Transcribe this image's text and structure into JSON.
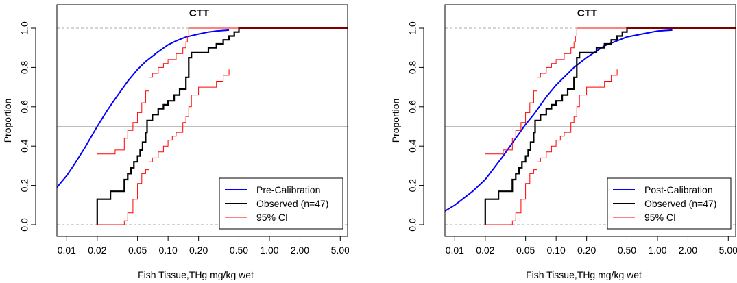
{
  "chart_data": [
    {
      "type": "line",
      "title": "CTT",
      "xlabel": "Fish Tissue,THg mg/kg wet",
      "ylabel": "Proportion",
      "x_scale": "log",
      "xlim": [
        0.008,
        6.0
      ],
      "ylim": [
        0,
        1
      ],
      "x_ticks": [
        0.01,
        0.02,
        0.05,
        0.1,
        0.2,
        0.5,
        1.0,
        2.0,
        5.0
      ],
      "x_tick_labels": [
        "0.01",
        "0.02",
        "0.05",
        "0.10",
        "0.20",
        "0.50",
        "1.00",
        "2.00",
        "5.00"
      ],
      "y_ticks": [
        0.0,
        0.2,
        0.4,
        0.6,
        0.8,
        1.0
      ],
      "y_tick_labels": [
        "0.0",
        "0.2",
        "0.4",
        "0.6",
        "0.8",
        "1.0"
      ],
      "reference_lines": [
        0.0,
        0.5,
        1.0
      ],
      "grid": false,
      "legend_position": "bottom-right",
      "legend": [
        {
          "label": "Pre-Calibration",
          "color": "#0000ff",
          "width": 2
        },
        {
          "label": "Observed (n=47)",
          "color": "#000000",
          "width": 2
        },
        {
          "label": "95% CI",
          "color": "#ff0000",
          "width": 1
        }
      ],
      "series": [
        {
          "name": "Pre-Calibration",
          "color": "#0000ff",
          "kind": "curve",
          "x": [
            0.008,
            0.01,
            0.012,
            0.015,
            0.02,
            0.025,
            0.03,
            0.04,
            0.05,
            0.06,
            0.08,
            0.1,
            0.12,
            0.15,
            0.2,
            0.25,
            0.3,
            0.4
          ],
          "y": [
            0.19,
            0.25,
            0.31,
            0.39,
            0.5,
            0.58,
            0.64,
            0.73,
            0.79,
            0.83,
            0.88,
            0.915,
            0.935,
            0.955,
            0.97,
            0.98,
            0.985,
            0.99
          ]
        },
        {
          "name": "Observed (n=47)",
          "color": "#000000",
          "kind": "step",
          "x": [
            0.02,
            0.027,
            0.037,
            0.04,
            0.043,
            0.046,
            0.05,
            0.053,
            0.056,
            0.06,
            0.062,
            0.07,
            0.08,
            0.09,
            0.1,
            0.115,
            0.13,
            0.15,
            0.16,
            0.17,
            0.25,
            0.3,
            0.35,
            0.4,
            0.45,
            0.5,
            0.6
          ],
          "y": [
            0.13,
            0.17,
            0.23,
            0.26,
            0.29,
            0.32,
            0.35,
            0.38,
            0.42,
            0.47,
            0.53,
            0.56,
            0.59,
            0.61,
            0.63,
            0.66,
            0.69,
            0.75,
            0.85,
            0.875,
            0.9,
            0.92,
            0.94,
            0.96,
            0.98,
            1.0,
            1.0
          ]
        },
        {
          "name": "95% CI",
          "color": "#ff0000",
          "kind": "step",
          "x": [
            0.02,
            0.03,
            0.037,
            0.04,
            0.045,
            0.05,
            0.055,
            0.06,
            0.065,
            0.07,
            0.08,
            0.09,
            0.1,
            0.12,
            0.14,
            0.15,
            0.155,
            0.16,
            0.3,
            0.5
          ],
          "y": [
            0.36,
            0.38,
            0.44,
            0.48,
            0.52,
            0.57,
            0.62,
            0.68,
            0.75,
            0.77,
            0.8,
            0.82,
            0.84,
            0.87,
            0.9,
            0.93,
            0.96,
            1.0,
            1.0,
            1.0
          ]
        },
        {
          "name": "95% CI",
          "color": "#ff0000",
          "kind": "step",
          "x": [
            0.02,
            0.037,
            0.04,
            0.045,
            0.05,
            0.055,
            0.06,
            0.065,
            0.07,
            0.08,
            0.09,
            0.1,
            0.11,
            0.12,
            0.14,
            0.15,
            0.16,
            0.17,
            0.2,
            0.3,
            0.35,
            0.4
          ],
          "y": [
            0.0,
            0.02,
            0.06,
            0.13,
            0.21,
            0.26,
            0.28,
            0.32,
            0.34,
            0.37,
            0.4,
            0.43,
            0.45,
            0.47,
            0.52,
            0.55,
            0.6,
            0.66,
            0.7,
            0.73,
            0.76,
            0.79
          ]
        }
      ]
    },
    {
      "type": "line",
      "title": "CTT",
      "xlabel": "Fish Tissue,THg mg/kg wet",
      "ylabel": "Proportion",
      "x_scale": "log",
      "xlim": [
        0.008,
        6.0
      ],
      "ylim": [
        0,
        1
      ],
      "x_ticks": [
        0.01,
        0.02,
        0.05,
        0.1,
        0.2,
        0.5,
        1.0,
        2.0,
        5.0
      ],
      "x_tick_labels": [
        "0.01",
        "0.02",
        "0.05",
        "0.10",
        "0.20",
        "0.50",
        "1.00",
        "2.00",
        "5.00"
      ],
      "y_ticks": [
        0.0,
        0.2,
        0.4,
        0.6,
        0.8,
        1.0
      ],
      "y_tick_labels": [
        "0.0",
        "0.2",
        "0.4",
        "0.6",
        "0.8",
        "1.0"
      ],
      "reference_lines": [
        0.0,
        0.5,
        1.0
      ],
      "grid": false,
      "legend_position": "bottom-right",
      "legend": [
        {
          "label": "Post-Calibration",
          "color": "#0000ff",
          "width": 2
        },
        {
          "label": "Observed (n=47)",
          "color": "#000000",
          "width": 2
        },
        {
          "label": "95% CI",
          "color": "#ff0000",
          "width": 1
        }
      ],
      "series": [
        {
          "name": "Post-Calibration",
          "color": "#0000ff",
          "kind": "curve",
          "x": [
            0.008,
            0.01,
            0.015,
            0.02,
            0.03,
            0.04,
            0.05,
            0.06,
            0.08,
            0.1,
            0.15,
            0.2,
            0.3,
            0.5,
            0.7,
            1.0,
            1.4
          ],
          "y": [
            0.07,
            0.1,
            0.17,
            0.23,
            0.35,
            0.44,
            0.51,
            0.56,
            0.65,
            0.71,
            0.8,
            0.85,
            0.91,
            0.955,
            0.97,
            0.985,
            0.99
          ]
        },
        {
          "name": "Observed (n=47)",
          "color": "#000000",
          "kind": "step",
          "x": [
            0.02,
            0.027,
            0.037,
            0.04,
            0.043,
            0.046,
            0.05,
            0.053,
            0.056,
            0.06,
            0.062,
            0.07,
            0.08,
            0.09,
            0.1,
            0.115,
            0.13,
            0.15,
            0.16,
            0.17,
            0.25,
            0.3,
            0.35,
            0.4,
            0.45,
            0.5,
            0.6
          ],
          "y": [
            0.13,
            0.17,
            0.23,
            0.26,
            0.29,
            0.32,
            0.35,
            0.38,
            0.42,
            0.47,
            0.53,
            0.56,
            0.59,
            0.61,
            0.63,
            0.66,
            0.69,
            0.75,
            0.85,
            0.875,
            0.9,
            0.92,
            0.94,
            0.96,
            0.98,
            1.0,
            1.0
          ]
        },
        {
          "name": "95% CI",
          "color": "#ff0000",
          "kind": "step",
          "x": [
            0.02,
            0.03,
            0.037,
            0.04,
            0.045,
            0.05,
            0.055,
            0.06,
            0.065,
            0.07,
            0.08,
            0.09,
            0.1,
            0.12,
            0.14,
            0.15,
            0.155,
            0.16,
            0.3,
            0.5
          ],
          "y": [
            0.36,
            0.38,
            0.44,
            0.48,
            0.52,
            0.57,
            0.62,
            0.68,
            0.75,
            0.77,
            0.8,
            0.82,
            0.84,
            0.87,
            0.9,
            0.93,
            0.96,
            1.0,
            1.0,
            1.0
          ]
        },
        {
          "name": "95% CI",
          "color": "#ff0000",
          "kind": "step",
          "x": [
            0.02,
            0.037,
            0.04,
            0.045,
            0.05,
            0.055,
            0.06,
            0.065,
            0.07,
            0.08,
            0.09,
            0.1,
            0.11,
            0.12,
            0.14,
            0.15,
            0.16,
            0.17,
            0.2,
            0.3,
            0.35,
            0.4
          ],
          "y": [
            0.0,
            0.02,
            0.06,
            0.13,
            0.21,
            0.26,
            0.28,
            0.32,
            0.34,
            0.37,
            0.4,
            0.43,
            0.45,
            0.47,
            0.52,
            0.55,
            0.6,
            0.66,
            0.7,
            0.73,
            0.76,
            0.79
          ]
        }
      ]
    }
  ]
}
